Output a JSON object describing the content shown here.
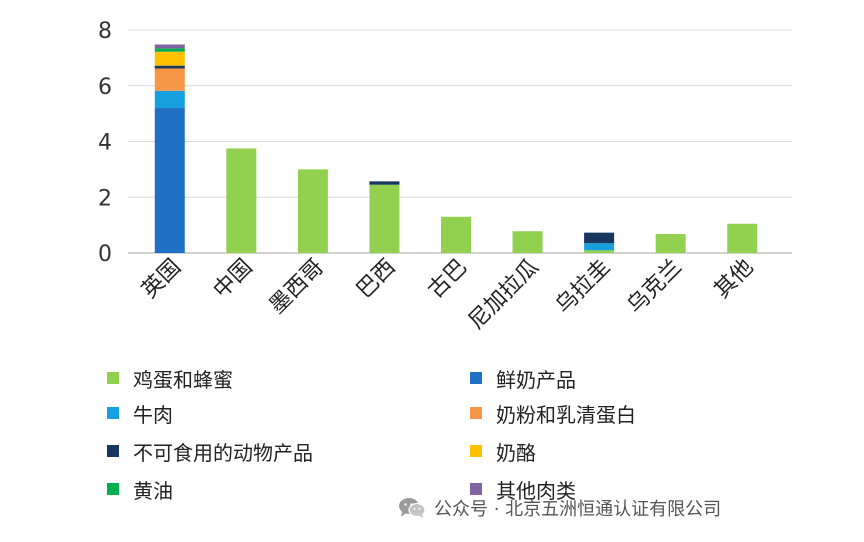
{
  "chart_data": {
    "type": "bar",
    "stacked": true,
    "title": "",
    "xlabel": "",
    "ylabel": "",
    "ylim": [
      0,
      8
    ],
    "yticks": [
      0,
      2,
      4,
      6,
      8
    ],
    "grid": true,
    "legend_position": "bottom",
    "categories": [
      "英国",
      "中国",
      "墨西哥",
      "巴西",
      "古巴",
      "尼加拉瓜",
      "乌拉圭",
      "乌克兰",
      "其他"
    ],
    "series": [
      {
        "name": "鸡蛋和蜂蜜",
        "color": "#92d050",
        "values": [
          0,
          3.75,
          3.0,
          2.45,
          1.3,
          0.78,
          0.1,
          0.68,
          1.05
        ]
      },
      {
        "name": "鲜奶产品",
        "color": "#1f6fc4",
        "values": [
          5.2,
          0,
          0,
          0,
          0,
          0,
          0,
          0,
          0
        ]
      },
      {
        "name": "牛肉",
        "color": "#16a0e0",
        "values": [
          0.62,
          0,
          0,
          0,
          0,
          0,
          0.25,
          0,
          0
        ]
      },
      {
        "name": "奶粉和乳清蛋白",
        "color": "#f79646",
        "values": [
          0.8,
          0,
          0,
          0,
          0,
          0,
          0,
          0,
          0
        ]
      },
      {
        "name": "不可食用的动物产品",
        "color": "#17375e",
        "values": [
          0.1,
          0,
          0,
          0.12,
          0,
          0,
          0.38,
          0,
          0
        ]
      },
      {
        "name": "奶酪",
        "color": "#ffc000",
        "values": [
          0.5,
          0,
          0,
          0,
          0,
          0,
          0,
          0,
          0
        ]
      },
      {
        "name": "黄油",
        "color": "#00b050",
        "values": [
          0.12,
          0,
          0,
          0,
          0,
          0,
          0,
          0,
          0
        ]
      },
      {
        "name": "其他肉类",
        "color": "#8064a2",
        "values": [
          0.14,
          0,
          0,
          0,
          0,
          0,
          0,
          0,
          0
        ]
      }
    ]
  },
  "legend_order": [
    {
      "series_index": 0
    },
    {
      "series_index": 1
    },
    {
      "series_index": 2
    },
    {
      "series_index": 3
    },
    {
      "series_index": 4
    },
    {
      "series_index": 5
    },
    {
      "series_index": 6
    },
    {
      "series_index": 7
    }
  ],
  "watermark": {
    "icon": "wechat-icon",
    "text": "公众号 · 北京五洲恒通认证有限公司"
  }
}
